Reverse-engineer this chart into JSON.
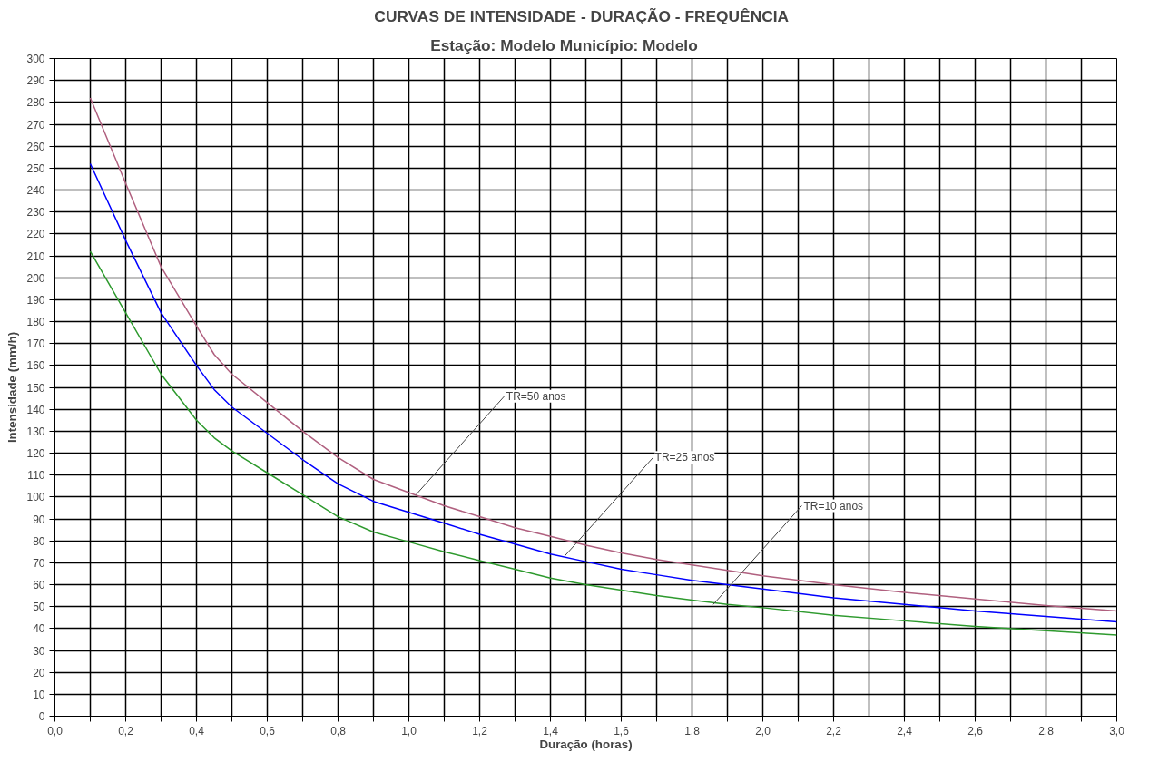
{
  "chart_data": {
    "type": "line",
    "title": "CURVAS DE INTENSIDADE  - DURAÇÃO  - FREQUÊNCIA",
    "subtitle": "Estação:  Modelo          Município: Modelo",
    "xlabel": "Duração (horas)",
    "ylabel": "Intensidade (mm/h)",
    "x": [
      0.1,
      0.2,
      0.3,
      0.4,
      0.45,
      0.5,
      0.6,
      0.7,
      0.8,
      0.9,
      1.0,
      1.1,
      1.2,
      1.3,
      1.4,
      1.5,
      1.6,
      1.7,
      1.8,
      1.9,
      2.0,
      2.2,
      2.4,
      2.6,
      2.8,
      3.0
    ],
    "series": [
      {
        "color": "#b0607f",
        "values": [
          282,
          243,
          205,
          178,
          165,
          156,
          143,
          130,
          118,
          108,
          102,
          96,
          91,
          86,
          82,
          78,
          74.5,
          71.5,
          69,
          66.5,
          64,
          60,
          56.5,
          53.5,
          50.5,
          48
        ]
      },
      {
        "color": "#0000ff",
        "values": [
          252,
          217,
          184,
          160,
          149,
          141,
          129,
          117,
          106,
          98,
          93,
          88,
          83,
          78.5,
          74,
          70.5,
          67,
          64.5,
          62,
          60,
          58,
          54,
          51,
          48,
          45.5,
          43
        ]
      },
      {
        "color": "#2e9a2e",
        "values": [
          212,
          184,
          156,
          135,
          127,
          121,
          111,
          101,
          91,
          84,
          79.5,
          75,
          71,
          67,
          63,
          60,
          57.5,
          55,
          53,
          51,
          49.5,
          46,
          43.5,
          41,
          39,
          37
        ]
      }
    ],
    "annotations": [
      {
        "text": "TR=50 anos",
        "x": 1.02,
        "y": 101
      },
      {
        "text": "TR=25 anos",
        "x": 1.44,
        "y": 73
      },
      {
        "text": "TR=10 anos",
        "x": 1.86,
        "y": 51
      }
    ],
    "xlim": [
      0,
      3.0
    ],
    "ylim": [
      0,
      300
    ],
    "xticks": [
      {
        "value": 0,
        "label": "0,0"
      },
      {
        "value": 0.1,
        "label": null
      },
      {
        "value": 0.2,
        "label": "0,2"
      },
      {
        "value": 0.3,
        "label": null
      },
      {
        "value": 0.4,
        "label": "0,4"
      },
      {
        "value": 0.5,
        "label": null
      },
      {
        "value": 0.6,
        "label": "0,6"
      },
      {
        "value": 0.7,
        "label": null
      },
      {
        "value": 0.8,
        "label": "0,8"
      },
      {
        "value": 0.9,
        "label": null
      },
      {
        "value": 1.0,
        "label": "1,0"
      },
      {
        "value": 1.1,
        "label": null
      },
      {
        "value": 1.2,
        "label": "1,2"
      },
      {
        "value": 1.3,
        "label": null
      },
      {
        "value": 1.4,
        "label": "1,4"
      },
      {
        "value": 1.5,
        "label": null
      },
      {
        "value": 1.6,
        "label": "1,6"
      },
      {
        "value": 1.7,
        "label": null
      },
      {
        "value": 1.8,
        "label": "1,8"
      },
      {
        "value": 1.9,
        "label": null
      },
      {
        "value": 2.0,
        "label": "2,0"
      },
      {
        "value": 2.1,
        "label": null
      },
      {
        "value": 2.2,
        "label": "2,2"
      },
      {
        "value": 2.3,
        "label": null
      },
      {
        "value": 2.4,
        "label": "2,4"
      },
      {
        "value": 2.5,
        "label": null
      },
      {
        "value": 2.6,
        "label": "2,6"
      },
      {
        "value": 2.7,
        "label": null
      },
      {
        "value": 2.8,
        "label": "2,8"
      },
      {
        "value": 2.9,
        "label": null
      },
      {
        "value": 3.0,
        "label": "3,0"
      }
    ],
    "yticks": [
      0,
      10,
      20,
      30,
      40,
      50,
      60,
      70,
      80,
      90,
      100,
      110,
      120,
      130,
      140,
      150,
      160,
      170,
      180,
      190,
      200,
      210,
      220,
      230,
      240,
      250,
      260,
      270,
      280,
      290,
      300
    ],
    "grid": true,
    "marker": "none",
    "line_style": "solid"
  }
}
